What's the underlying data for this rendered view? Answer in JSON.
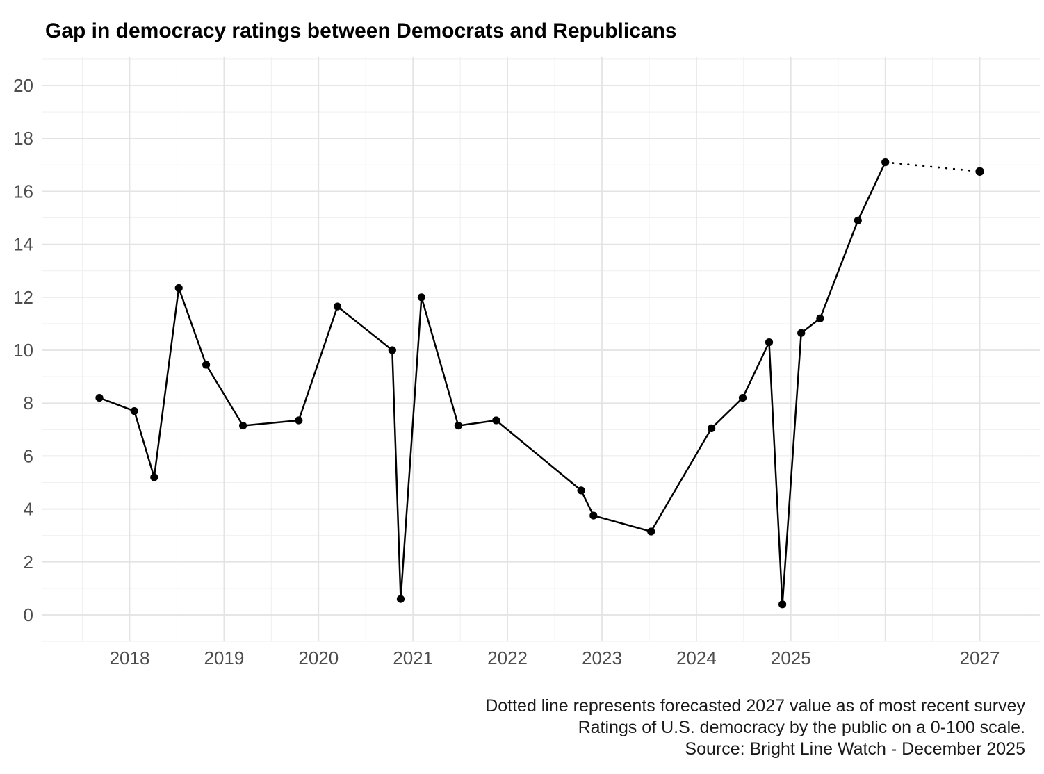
{
  "chart_data": {
    "type": "line",
    "title": "Gap in democracy ratings between Democrats and Republicans",
    "xlabel": "",
    "ylabel": "",
    "xlim": [
      2017.07,
      2027.64
    ],
    "ylim": [
      -1.05,
      21.1
    ],
    "grid": "on",
    "legend": "none",
    "x_tick_labels": [
      {
        "year": 2018,
        "label": "2018"
      },
      {
        "year": 2019,
        "label": "2019"
      },
      {
        "year": 2020,
        "label": "2020"
      },
      {
        "year": 2021,
        "label": "2021"
      },
      {
        "year": 2022,
        "label": "2022"
      },
      {
        "year": 2023,
        "label": "2023"
      },
      {
        "year": 2024,
        "label": "2024"
      },
      {
        "year": 2025,
        "label": "2025"
      },
      {
        "year": 2027,
        "label": "2027"
      }
    ],
    "x_gridlines_major": [
      2018,
      2019,
      2020,
      2021,
      2022,
      2023,
      2024,
      2025,
      2026,
      2027
    ],
    "x_gridlines_minor": [
      2017.5,
      2018.5,
      2019.5,
      2020.5,
      2021.5,
      2022.5,
      2023.5,
      2024.5,
      2025.5,
      2026.5,
      2027.5
    ],
    "y_ticks": [
      {
        "value": 0,
        "label": "0"
      },
      {
        "value": 2,
        "label": "2"
      },
      {
        "value": 4,
        "label": "4"
      },
      {
        "value": 6,
        "label": "6"
      },
      {
        "value": 8,
        "label": "8"
      },
      {
        "value": 10,
        "label": "10"
      },
      {
        "value": 12,
        "label": "12"
      },
      {
        "value": 14,
        "label": "14"
      },
      {
        "value": 16,
        "label": "16"
      },
      {
        "value": 18,
        "label": "18"
      },
      {
        "value": 20,
        "label": "20"
      }
    ],
    "y_gridlines_minor": [
      -1,
      1,
      3,
      5,
      7,
      9,
      11,
      13,
      15,
      17,
      19,
      21
    ],
    "series": [
      {
        "name": "observed-gap",
        "style": "solid",
        "points": [
          [
            2017.68,
            8.2
          ],
          [
            2018.05,
            7.7
          ],
          [
            2018.26,
            5.2
          ],
          [
            2018.52,
            12.35
          ],
          [
            2018.81,
            9.45
          ],
          [
            2019.2,
            7.15
          ],
          [
            2019.79,
            7.35
          ],
          [
            2020.2,
            11.65
          ],
          [
            2020.78,
            10.0
          ],
          [
            2020.87,
            0.6
          ],
          [
            2021.09,
            12.0
          ],
          [
            2021.48,
            7.15
          ],
          [
            2021.88,
            7.35
          ],
          [
            2022.78,
            4.7
          ],
          [
            2022.91,
            3.75
          ],
          [
            2023.52,
            3.15
          ],
          [
            2024.16,
            7.05
          ],
          [
            2024.49,
            8.2
          ],
          [
            2024.77,
            10.3
          ],
          [
            2024.91,
            0.4
          ],
          [
            2025.11,
            10.65
          ],
          [
            2025.31,
            11.2
          ],
          [
            2025.71,
            14.9
          ],
          [
            2026.0,
            17.1
          ]
        ]
      },
      {
        "name": "forecast-2027",
        "style": "dotted",
        "points": [
          [
            2026.0,
            17.1
          ],
          [
            2027.0,
            16.75
          ]
        ]
      }
    ]
  },
  "caption": {
    "line1": "Dotted line represents forecasted 2027 value as of most recent survey",
    "line2": "Ratings of U.S. democracy by the public on a 0-100 scale.",
    "line3": "Source: Bright Line Watch - December 2025"
  },
  "colors": {
    "background": "#ffffff",
    "line": "#000000",
    "point": "#000000",
    "grid_major": "#e3e3e3",
    "grid_minor": "#f0f0f0",
    "tick_label": "#4d4d4d",
    "title": "#000000",
    "caption": "#1a1a1a"
  }
}
